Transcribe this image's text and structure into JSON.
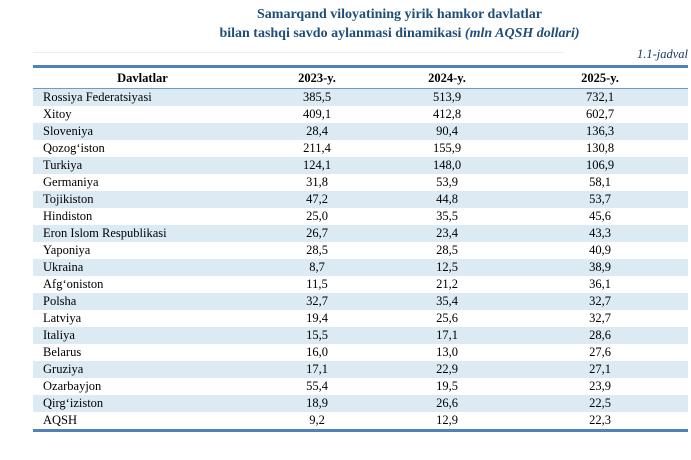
{
  "title": {
    "line1": "Samarqand viloyatining yirik hamkor davlatlar",
    "line2_regular": "bilan tashqi savdo aylanmasi dinamikasi ",
    "line2_italic": "(mln AQSH dollari)"
  },
  "table_label": "1.1-jadval",
  "colors": {
    "title_text": "#1F4E79",
    "table_border": "#4F81BD",
    "header_underline": "#6D9BC7",
    "row_band": "#DBEAF3",
    "label_text": "#17365D"
  },
  "table": {
    "headers": [
      "Davlatlar",
      "2023-y.",
      "2024-y.",
      "2025-y."
    ],
    "rows": [
      [
        "Rossiya Federatsiyasi",
        "385,5",
        "513,9",
        "732,1"
      ],
      [
        "Xitoy",
        "409,1",
        "412,8",
        "602,7"
      ],
      [
        "Sloveniya",
        "28,4",
        "90,4",
        "136,3"
      ],
      [
        "Qozogʻiston",
        "211,4",
        "155,9",
        "130,8"
      ],
      [
        "Turkiya",
        "124,1",
        "148,0",
        "106,9"
      ],
      [
        "Germaniya",
        "31,8",
        "53,9",
        "58,1"
      ],
      [
        "Tojikiston",
        "47,2",
        "44,8",
        "53,7"
      ],
      [
        "Hindiston",
        "25,0",
        "35,5",
        "45,6"
      ],
      [
        "Eron Islom Respublikasi",
        "26,7",
        "23,4",
        "43,3"
      ],
      [
        "Yaponiya",
        "28,5",
        "28,5",
        "40,9"
      ],
      [
        "Ukraina",
        "8,7",
        "12,5",
        "38,9"
      ],
      [
        "Afgʻoniston",
        "11,5",
        "21,2",
        "36,1"
      ],
      [
        "Polsha",
        "32,7",
        "35,4",
        "32,7"
      ],
      [
        "Latviya",
        "19,4",
        "25,6",
        "32,7"
      ],
      [
        "Italiya",
        "15,5",
        "17,1",
        "28,6"
      ],
      [
        "Belarus",
        "16,0",
        "13,0",
        "27,6"
      ],
      [
        "Gruziya",
        "17,1",
        "22,9",
        "27,1"
      ],
      [
        "Ozarbayjon",
        "55,4",
        "19,5",
        "23,9"
      ],
      [
        "Qirgʻiziston",
        "18,9",
        "26,6",
        "22,5"
      ],
      [
        "AQSH",
        "9,2",
        "12,9",
        "22,3"
      ]
    ]
  },
  "chart_data": {
    "type": "table",
    "title": "Samarqand viloyatining yirik hamkor davlatlar bilan tashqi savdo aylanmasi dinamikasi (mln AQSH dollari)",
    "categories": [
      "Rossiya Federatsiyasi",
      "Xitoy",
      "Sloveniya",
      "Qozogʻiston",
      "Turkiya",
      "Germaniya",
      "Tojikiston",
      "Hindiston",
      "Eron Islom Respublikasi",
      "Yaponiya",
      "Ukraina",
      "Afgʻoniston",
      "Polsha",
      "Latviya",
      "Italiya",
      "Belarus",
      "Gruziya",
      "Ozarbayjon",
      "Qirgʻiziston",
      "AQSH"
    ],
    "series": [
      {
        "name": "2023-y.",
        "values": [
          385.5,
          409.1,
          28.4,
          211.4,
          124.1,
          31.8,
          47.2,
          25.0,
          26.7,
          28.5,
          8.7,
          11.5,
          32.7,
          19.4,
          15.5,
          16.0,
          17.1,
          55.4,
          18.9,
          9.2
        ]
      },
      {
        "name": "2024-y.",
        "values": [
          513.9,
          412.8,
          90.4,
          155.9,
          148.0,
          53.9,
          44.8,
          35.5,
          23.4,
          28.5,
          12.5,
          21.2,
          35.4,
          25.6,
          17.1,
          13.0,
          22.9,
          19.5,
          26.6,
          12.9
        ]
      },
      {
        "name": "2025-y.",
        "values": [
          732.1,
          602.7,
          136.3,
          130.8,
          106.9,
          58.1,
          53.7,
          45.6,
          43.3,
          40.9,
          38.9,
          36.1,
          32.7,
          32.7,
          28.6,
          27.6,
          27.1,
          23.9,
          22.5,
          22.3
        ]
      }
    ]
  }
}
